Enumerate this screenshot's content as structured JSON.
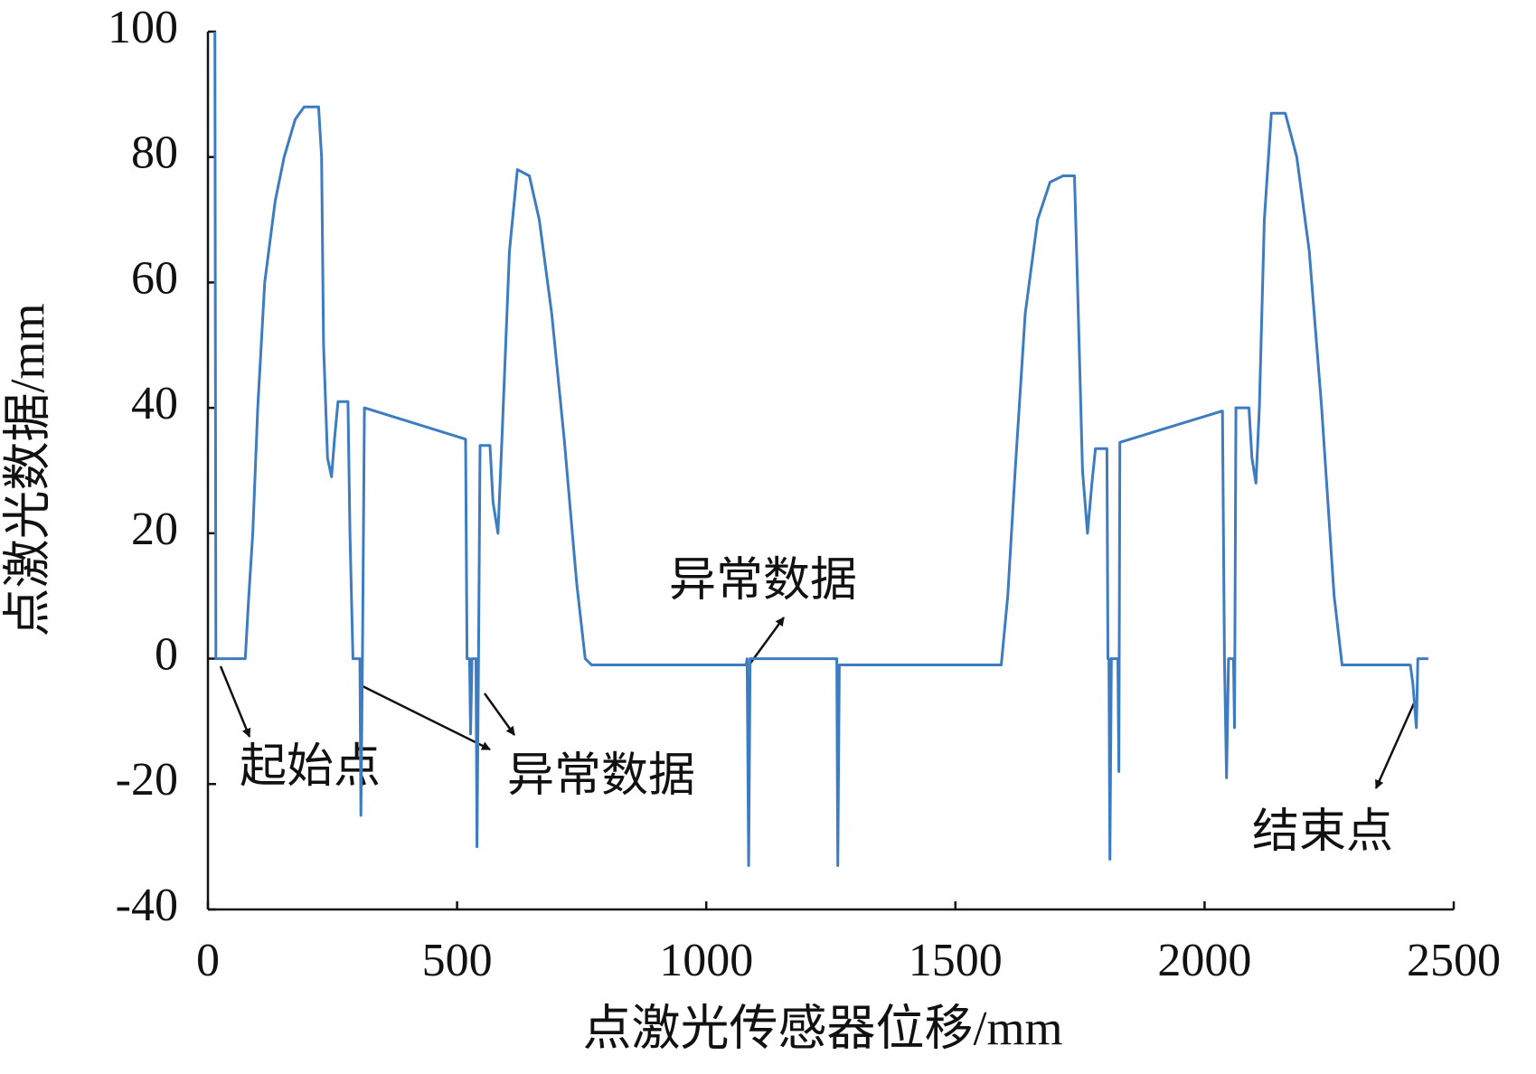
{
  "chart_data": {
    "type": "line",
    "x_label": "点激光传感器位移/mm",
    "y_label": "点激光数据/mm",
    "x": [
      14,
      16,
      75,
      82,
      90,
      100,
      114,
      135,
      153,
      175,
      193,
      222,
      228,
      232,
      240,
      248,
      254,
      261,
      281,
      285,
      291,
      305,
      307,
      310,
      314,
      517,
      520,
      525,
      527,
      530,
      538,
      540,
      543,
      546,
      566,
      572,
      582,
      590,
      605,
      621,
      645,
      665,
      690,
      715,
      740,
      757,
      770,
      1080,
      1082,
      1085,
      1088,
      1262,
      1264,
      1267,
      1592,
      1605,
      1620,
      1640,
      1665,
      1690,
      1716,
      1739,
      1745,
      1755,
      1765,
      1774,
      1781,
      1804,
      1806,
      1808,
      1810,
      1813,
      1826,
      1828,
      1830,
      2036,
      2040,
      2044,
      2048,
      2058,
      2060,
      2063,
      2089,
      2095,
      2103,
      2110,
      2120,
      2134,
      2162,
      2185,
      2210,
      2235,
      2260,
      2276,
      2413,
      2418,
      2425,
      2428,
      2449
    ],
    "series": [
      {
        "color": "#3d7cc0",
        "values": [
          100,
          0,
          0,
          10,
          20,
          40,
          60,
          73,
          80,
          86,
          88,
          88,
          80,
          50,
          32,
          29,
          35,
          41,
          41,
          20,
          0,
          0,
          -25,
          0,
          40,
          35,
          0,
          0,
          -12,
          0,
          0,
          -30,
          0,
          34,
          34,
          25,
          20,
          35,
          65,
          78,
          77,
          70,
          55,
          35,
          12,
          0,
          -1,
          -1,
          0,
          -33,
          0,
          0,
          -33,
          -1,
          -1,
          10,
          30,
          55,
          70,
          76,
          77,
          77,
          60,
          30,
          20,
          28,
          33.5,
          33.5,
          0,
          0,
          -32,
          0,
          0,
          -18,
          34.5,
          39.5,
          0,
          -19,
          0,
          0,
          -11,
          40,
          40,
          32,
          28,
          40,
          70,
          87,
          87,
          80,
          65,
          40,
          10,
          -1,
          -1,
          -4,
          -11,
          0,
          0
        ]
      }
    ],
    "xlim": [
      0,
      2500
    ],
    "xticks": [
      0,
      500,
      1000,
      1500,
      2000,
      2500
    ],
    "ylim": [
      -40,
      100
    ],
    "yticks": [
      -40,
      -20,
      0,
      20,
      40,
      60,
      80,
      100
    ],
    "annotations": [
      "起始点",
      "异常数据",
      "异常数据",
      "结束点"
    ]
  }
}
